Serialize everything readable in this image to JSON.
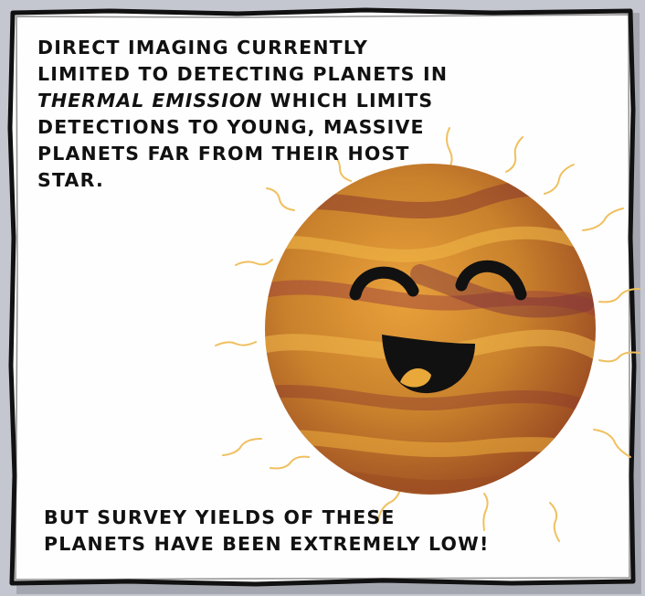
{
  "panel": {
    "caption_top": {
      "line1": "DIRECT IMAGING CURRENTLY",
      "line2": "LIMITED TO DETECTING PLANETS IN",
      "emphasis": "THERMAL EMISSION",
      "line3_rest": " WHICH LIMITS",
      "line4": "DETECTIONS TO YOUNG, MASSIVE",
      "line5": "PLANETS FAR FROM THEIR HOST",
      "line6": "STAR."
    },
    "caption_bottom": {
      "line1": "BUT SURVEY YIELDS OF THESE",
      "line2": "PLANETS HAVE BEEN EXTREMELY LOW!"
    }
  },
  "colors": {
    "panel_bg": "#fefefe",
    "border": "#111111",
    "planet_base": "#c9812c",
    "planet_band_light": "#e8a83a",
    "planet_band_dark": "#8b3a2c",
    "glow": "#f0c060"
  },
  "icons": {
    "planet": "smiling-planet-illustration"
  }
}
